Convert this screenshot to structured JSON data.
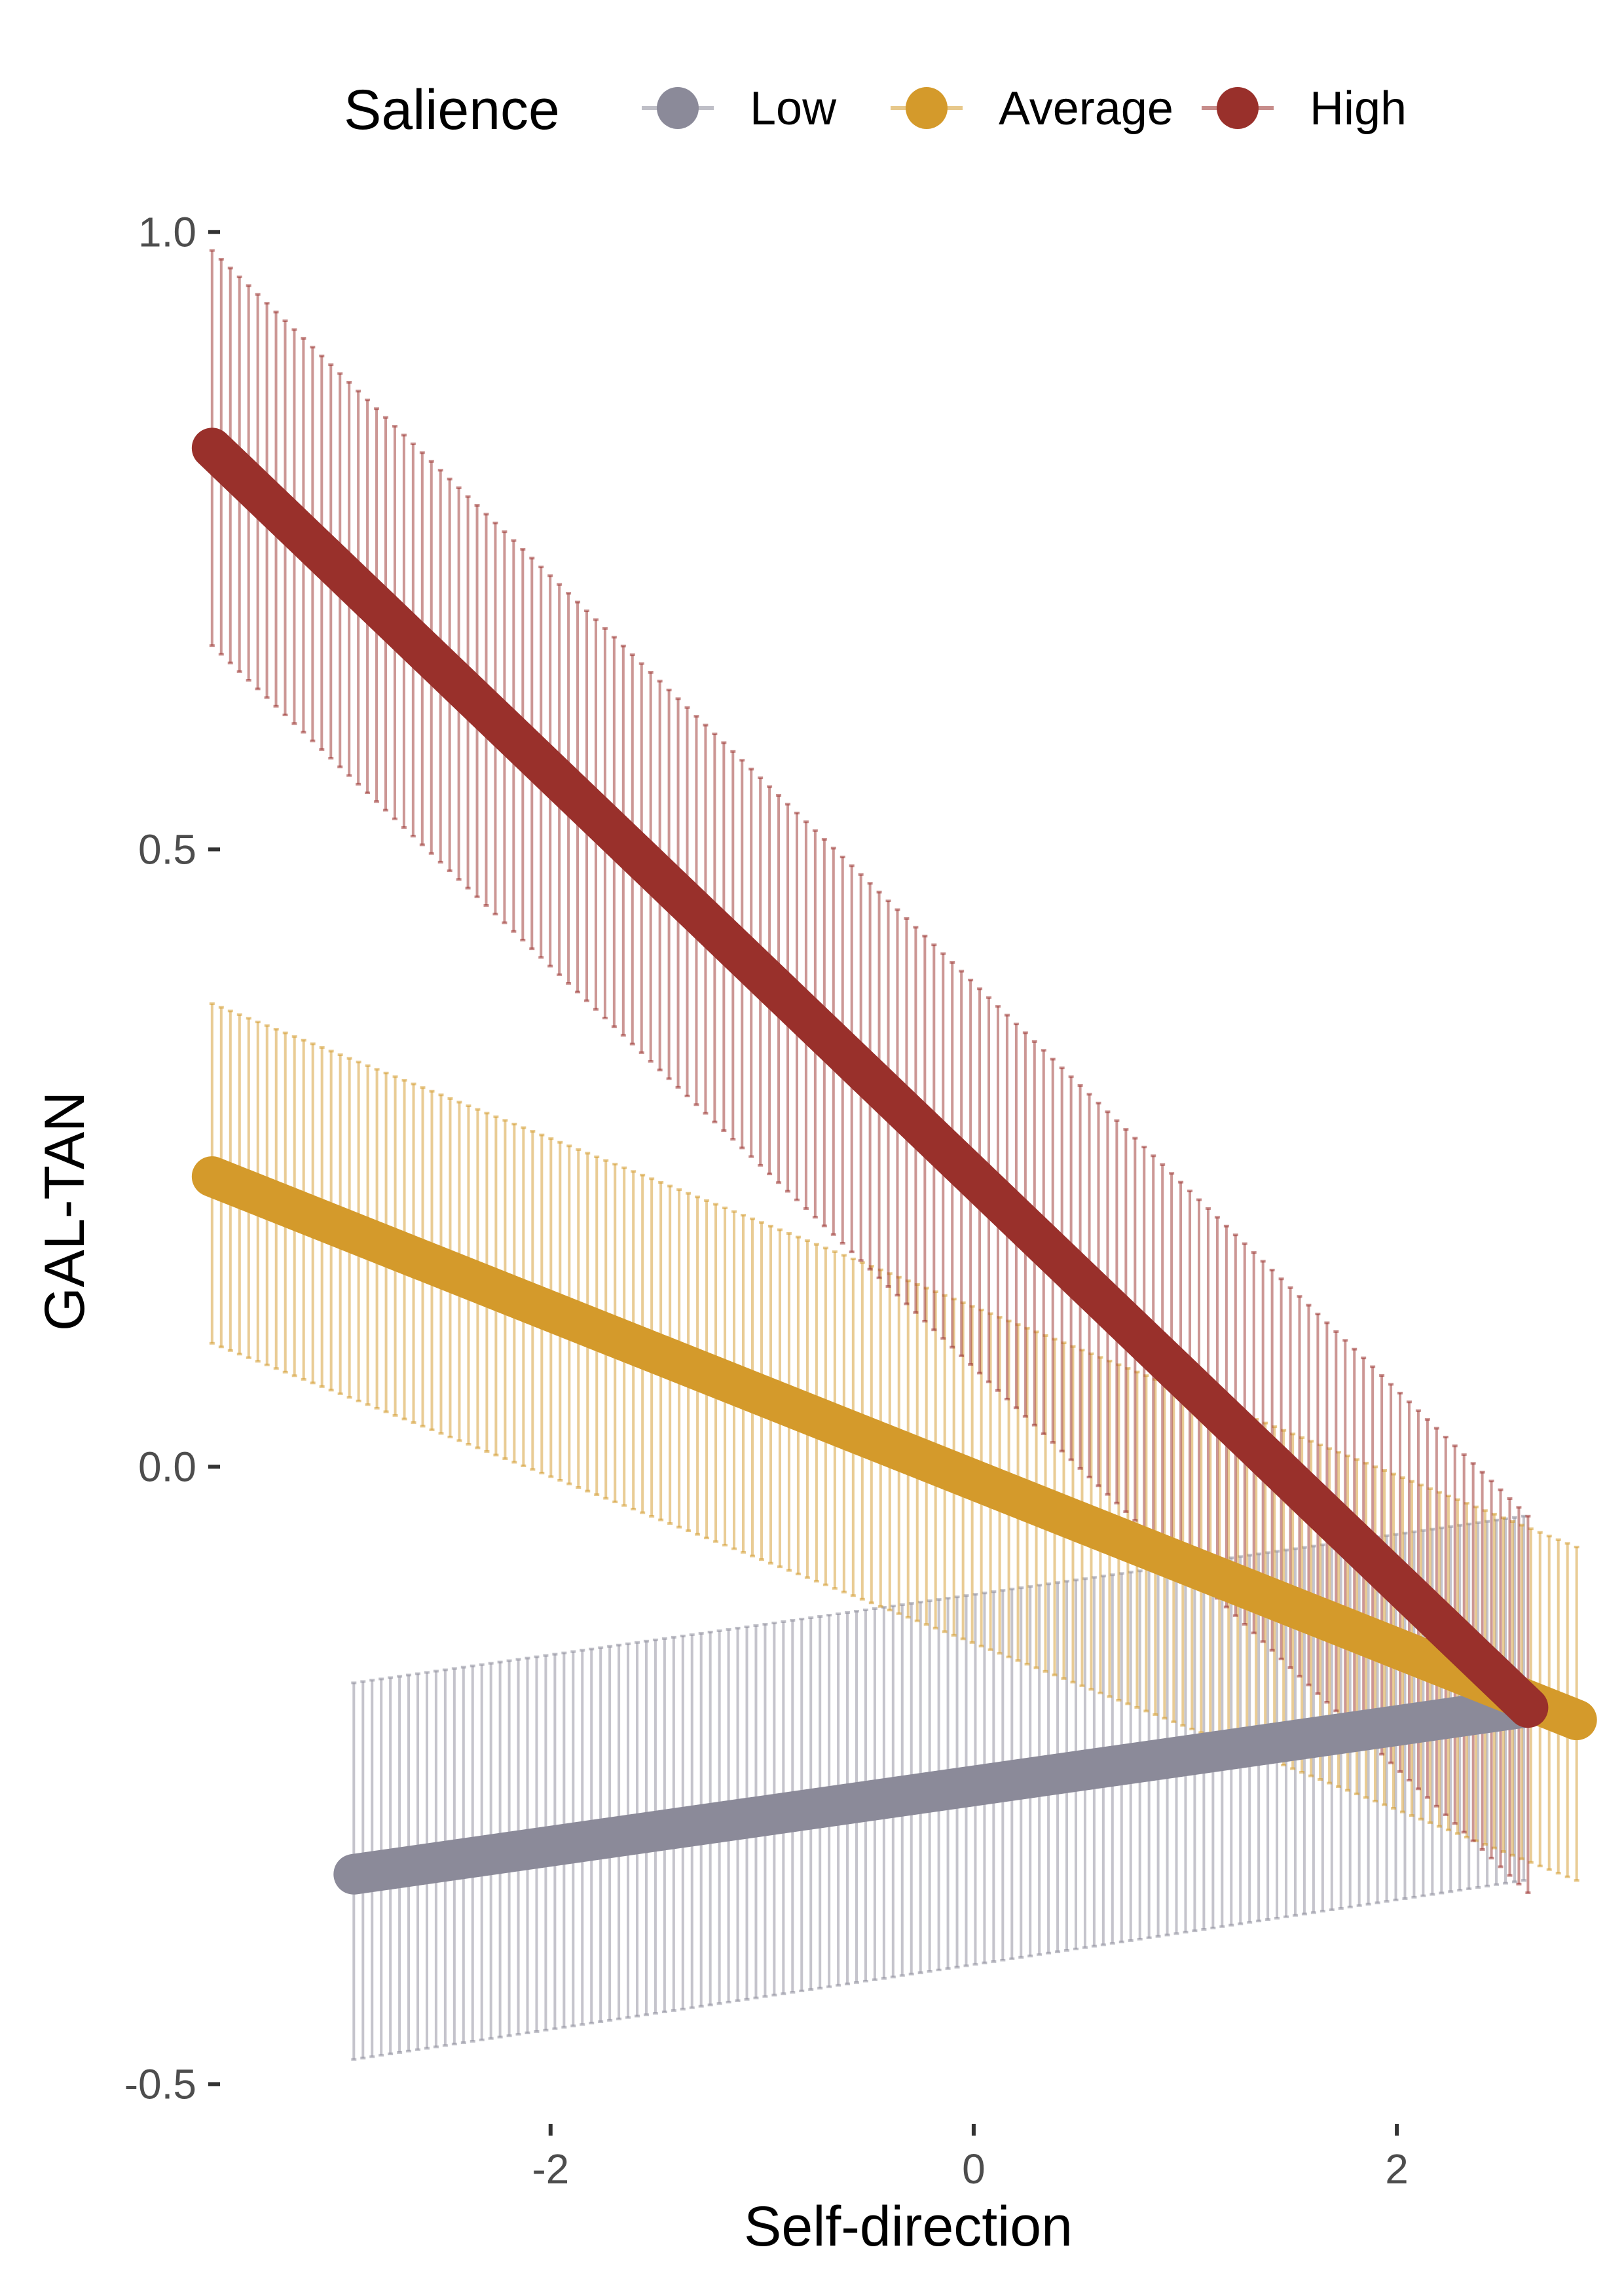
{
  "chart_data": {
    "type": "line",
    "title": "",
    "xlabel": "Self-direction",
    "ylabel": "GAL-TAN",
    "xlim": [
      -3.55,
      2.95
    ],
    "ylim": [
      -0.53,
      1.05
    ],
    "x_ticks": [
      -2,
      0,
      2
    ],
    "x_tick_labels": [
      "-2",
      "0",
      "2"
    ],
    "y_ticks": [
      -0.5,
      0.0,
      0.5,
      1.0
    ],
    "y_tick_labels": [
      "-0.5",
      "0.0",
      "0.5",
      "1.0"
    ],
    "grid": false,
    "legend": {
      "title": "Salience",
      "position": "top",
      "entries": [
        "Low",
        "Average",
        "High"
      ]
    },
    "series": [
      {
        "name": "Low",
        "color": "#8b8a99",
        "x_start": -2.93,
        "x_end": 2.6,
        "y_start": -0.33,
        "y_end": -0.195,
        "ci_low_start": -0.48,
        "ci_low_end": -0.335,
        "ci_high_start": -0.175,
        "ci_high_end": -0.04
      },
      {
        "name": "Average",
        "color": "#d49a2b",
        "x_start": -3.6,
        "x_end": 2.85,
        "y_start": 0.235,
        "y_end": -0.205,
        "ci_low_start": 0.1,
        "ci_low_end": -0.335,
        "ci_high_start": 0.375,
        "ci_high_end": -0.065
      },
      {
        "name": "High",
        "color": "#99302b",
        "x_start": -3.6,
        "x_end": 2.62,
        "y_start": 0.825,
        "y_end": -0.195,
        "ci_low_start": 0.665,
        "ci_low_end": -0.345,
        "ci_high_start": 0.985,
        "ci_high_end": -0.04
      }
    ]
  }
}
